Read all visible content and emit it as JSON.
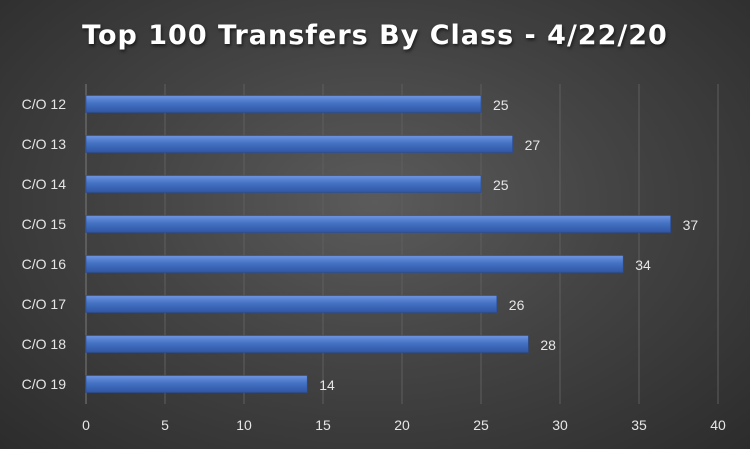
{
  "chart_data": {
    "type": "bar",
    "orientation": "horizontal",
    "title": "Top 100 Transfers By Class - 4/22/20",
    "xlabel": "",
    "ylabel": "",
    "categories": [
      "C/O 12",
      "C/O 13",
      "C/O 14",
      "C/O 15",
      "C/O 16",
      "C/O 17",
      "C/O 18",
      "C/O 19"
    ],
    "values": [
      25,
      27,
      25,
      37,
      34,
      26,
      28,
      14
    ],
    "xlim": [
      0,
      40
    ],
    "xticks": [
      0,
      5,
      10,
      15,
      20,
      25,
      30,
      35,
      40
    ],
    "grid": true,
    "legend": "none",
    "data_labels": true,
    "bar_color": "#4472c4",
    "background_color": "#404040",
    "gridline_color": "#5e5e5e",
    "text_color": "#e6e6e6"
  }
}
